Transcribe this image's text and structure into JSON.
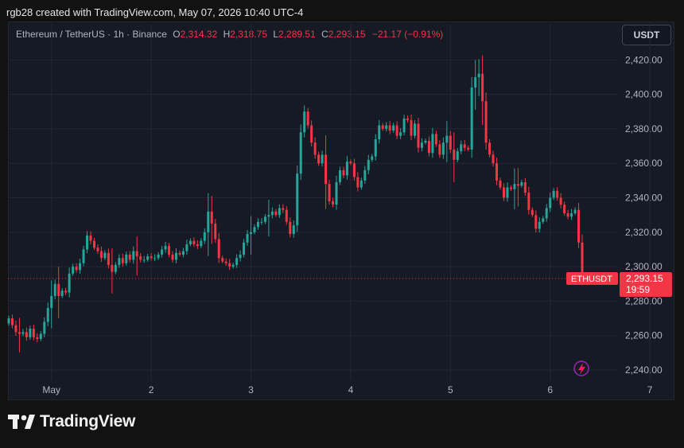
{
  "header": {
    "credit": "rgb28 created with TradingView.com, May 07, 2026 10:40 UTC-4"
  },
  "legend": {
    "symbol": "Ethereum / TetherUS · 1h · Binance",
    "open_label": "O",
    "open_value": "2,314.32",
    "high_label": "H",
    "high_value": "2,318.75",
    "low_label": "L",
    "low_value": "2,289.51",
    "close_label": "C",
    "close_value": "2,293.15",
    "change": "−21.17 (−0.91%)"
  },
  "unit_button": "USDT",
  "price_tag": {
    "symbol": "ETHUSDT",
    "price": "2,293.15",
    "countdown": "19:59"
  },
  "footer": {
    "brand": "TradingView"
  },
  "colors": {
    "up": "#26a69a",
    "down": "#f23645",
    "grid": "#232735",
    "axis_text": "#b2b5be"
  },
  "chart_data": {
    "type": "candlestick",
    "y_ticks": [
      "2,420.00",
      "2,400.00",
      "2,380.00",
      "2,360.00",
      "2,340.00",
      "2,320.00",
      "2,300.00",
      "2,280.00",
      "2,260.00",
      "2,240.00"
    ],
    "y_tick_values": [
      2420,
      2400,
      2380,
      2360,
      2340,
      2320,
      2300,
      2280,
      2260,
      2240
    ],
    "x_ticks": [
      "May",
      "2",
      "3",
      "4",
      "5",
      "6",
      "7"
    ],
    "x_tick_bar_index": [
      12,
      40,
      68,
      96,
      124,
      152,
      180
    ],
    "ylim": [
      2234,
      2428
    ],
    "last_price": 2293.15,
    "grid": true,
    "close": [
      2270,
      2266,
      2262,
      2261,
      2262,
      2259,
      2264,
      2259,
      2258,
      2261,
      2268,
      2276,
      2283,
      2290,
      2283,
      2286,
      2285,
      2296,
      2300,
      2298,
      2302,
      2310,
      2318,
      2315,
      2311,
      2309,
      2305,
      2308,
      2301,
      2297,
      2301,
      2305,
      2302,
      2307,
      2304,
      2309,
      2306,
      2304,
      2304,
      2306,
      2305,
      2305,
      2307,
      2310,
      2312,
      2307,
      2304,
      2308,
      2307,
      2309,
      2313,
      2315,
      2313,
      2312,
      2315,
      2320,
      2332,
      2325,
      2316,
      2305,
      2303,
      2302,
      2300,
      2301,
      2305,
      2307,
      2314,
      2319,
      2320,
      2323,
      2326,
      2326,
      2329,
      2330,
      2332,
      2330,
      2334,
      2333,
      2326,
      2319,
      2324,
      2354,
      2378,
      2390,
      2382,
      2372,
      2365,
      2360,
      2365,
      2348,
      2338,
      2336,
      2349,
      2356,
      2353,
      2361,
      2360,
      2352,
      2346,
      2350,
      2356,
      2362,
      2364,
      2374,
      2382,
      2380,
      2382,
      2379,
      2382,
      2376,
      2378,
      2386,
      2385,
      2376,
      2383,
      2369,
      2372,
      2373,
      2366,
      2377,
      2371,
      2365,
      2372,
      2376,
      2368,
      2362,
      2367,
      2371,
      2369,
      2368,
      2404,
      2410,
      2412,
      2396,
      2372,
      2365,
      2360,
      2350,
      2346,
      2340,
      2346,
      2345,
      2348,
      2347,
      2349,
      2343,
      2333,
      2330,
      2322,
      2326,
      2328,
      2334,
      2340,
      2344,
      2340,
      2336,
      2331,
      2329,
      2331,
      2333,
      2314,
      2293
    ],
    "tall_wick_indices": [
      3,
      12,
      14,
      29,
      36,
      56,
      57,
      68,
      73,
      89,
      123,
      125,
      131,
      132,
      133,
      142,
      143,
      170,
      171,
      188,
      189,
      190,
      194,
      196,
      205
    ],
    "sample_ohlc": {
      "open": 2314.32,
      "high": 2318.75,
      "low": 2289.51,
      "close": 2293.15
    }
  }
}
